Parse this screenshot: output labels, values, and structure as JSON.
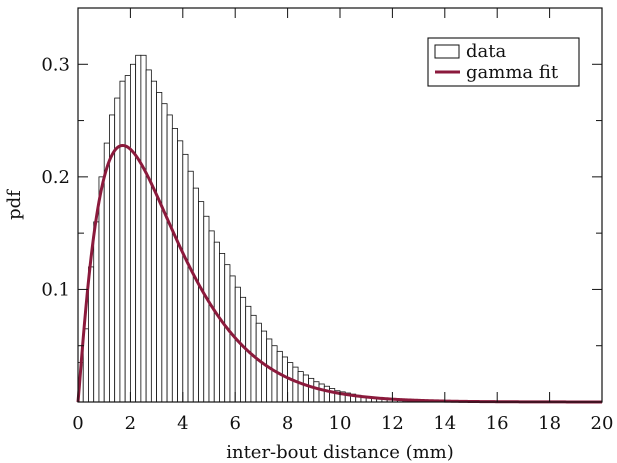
{
  "chart_data": {
    "type": "bar",
    "title": "",
    "xlabel": "inter-bout distance (mm)",
    "ylabel": "pdf",
    "xlim": [
      0,
      20
    ],
    "ylim": [
      0,
      0.35
    ],
    "x_ticks": [
      "0",
      "2",
      "4",
      "6",
      "8",
      "10",
      "12",
      "14",
      "16",
      "18",
      "20"
    ],
    "y_ticks": [
      "0.1",
      "0.2",
      "0.3"
    ],
    "grid": false,
    "legend_position": "top-right",
    "histogram": {
      "name": "data",
      "bin_width": 0.2,
      "bin_start": 0.0,
      "values": [
        0.035,
        0.065,
        0.12,
        0.16,
        0.2,
        0.23,
        0.255,
        0.27,
        0.285,
        0.29,
        0.3,
        0.308,
        0.308,
        0.295,
        0.285,
        0.275,
        0.265,
        0.255,
        0.243,
        0.232,
        0.22,
        0.205,
        0.19,
        0.178,
        0.165,
        0.152,
        0.142,
        0.132,
        0.122,
        0.112,
        0.102,
        0.093,
        0.085,
        0.077,
        0.07,
        0.063,
        0.056,
        0.05,
        0.045,
        0.04,
        0.035,
        0.031,
        0.027,
        0.024,
        0.021,
        0.018,
        0.016,
        0.014,
        0.012,
        0.01,
        0.009,
        0.008,
        0.007,
        0.006,
        0.005,
        0.004,
        0.004,
        0.003,
        0.003,
        0.002,
        0.002,
        0.002,
        0.001,
        0.001,
        0.001,
        0.001,
        0.001,
        0.001,
        0.0,
        0.0
      ]
    },
    "fit": {
      "name": "gamma fit",
      "color": "#8b1a3c",
      "distribution": "gamma",
      "shape": 2.1,
      "scale": 1.55
    },
    "colors": {
      "axis": "#111111",
      "bar_fill": "#ffffff",
      "bar_stroke": "#111111"
    }
  }
}
